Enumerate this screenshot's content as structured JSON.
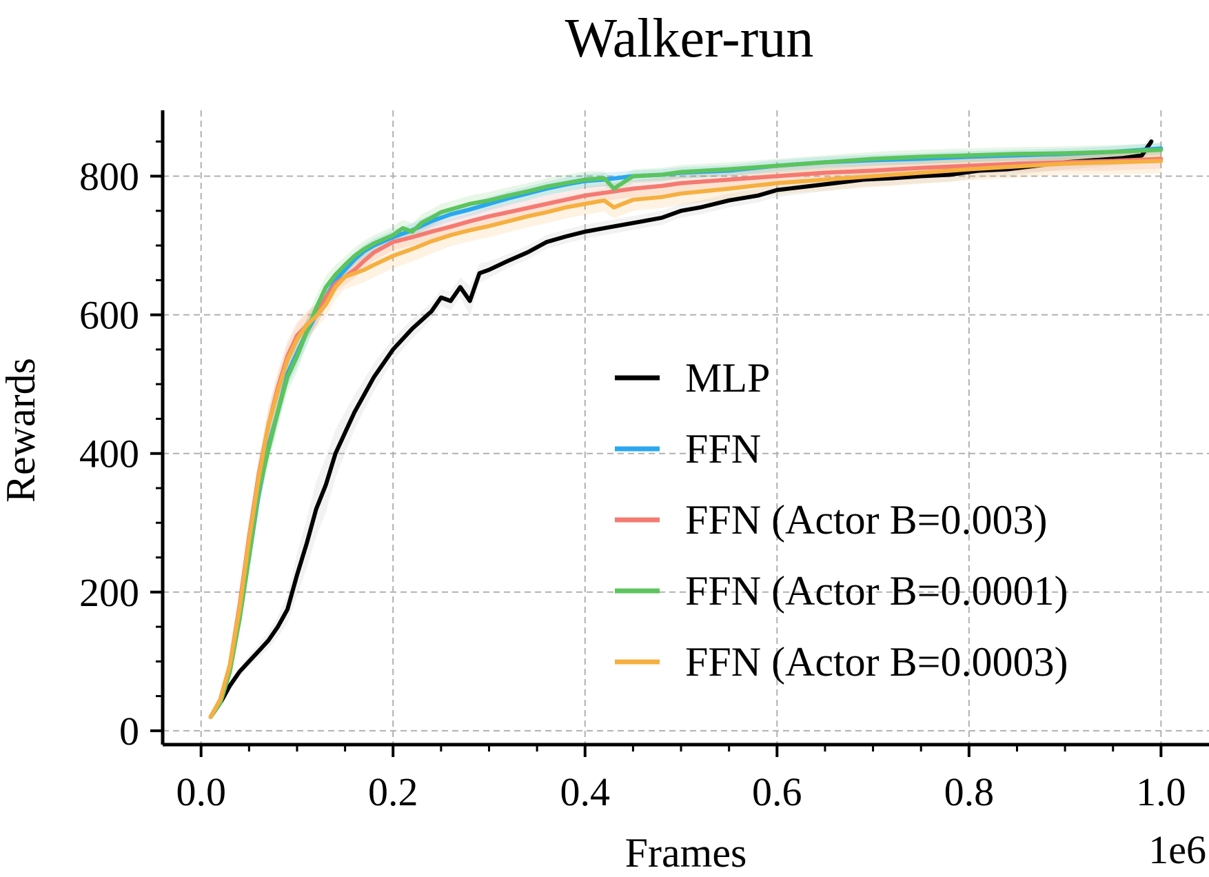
{
  "chart_data": {
    "type": "line",
    "title": "Walker-run",
    "xlabel": "Frames",
    "ylabel": "Rewards",
    "x_scale_label": "1e6",
    "xlim": [
      -0.04,
      1.05
    ],
    "ylim": [
      -20,
      895
    ],
    "xticks": [
      0.0,
      0.2,
      0.4,
      0.6,
      0.8,
      1.0
    ],
    "xtick_labels": [
      "0.0",
      "0.2",
      "0.4",
      "0.6",
      "0.8",
      "1.0"
    ],
    "yticks": [
      0,
      200,
      400,
      600,
      800
    ],
    "ytick_labels": [
      "0",
      "200",
      "400",
      "600",
      "800"
    ],
    "grid": true,
    "legend_position": "center-right",
    "series": [
      {
        "name": "MLP",
        "color": "#000000",
        "band_color": "#aaaaaa",
        "x": [
          0.01,
          0.02,
          0.03,
          0.04,
          0.05,
          0.06,
          0.07,
          0.08,
          0.09,
          0.1,
          0.11,
          0.12,
          0.13,
          0.14,
          0.15,
          0.16,
          0.17,
          0.18,
          0.19,
          0.2,
          0.22,
          0.24,
          0.25,
          0.26,
          0.27,
          0.28,
          0.29,
          0.3,
          0.32,
          0.34,
          0.36,
          0.38,
          0.4,
          0.42,
          0.44,
          0.46,
          0.48,
          0.5,
          0.52,
          0.55,
          0.58,
          0.6,
          0.63,
          0.66,
          0.69,
          0.72,
          0.75,
          0.78,
          0.81,
          0.84,
          0.87,
          0.9,
          0.93,
          0.96,
          0.98,
          0.99
        ],
        "y": [
          20,
          40,
          65,
          85,
          100,
          115,
          130,
          150,
          175,
          225,
          270,
          320,
          355,
          400,
          430,
          460,
          485,
          510,
          530,
          550,
          580,
          605,
          625,
          620,
          640,
          620,
          660,
          665,
          678,
          690,
          705,
          713,
          720,
          725,
          730,
          735,
          740,
          750,
          755,
          765,
          772,
          780,
          785,
          790,
          795,
          797,
          800,
          802,
          808,
          810,
          815,
          820,
          823,
          826,
          830,
          850
        ],
        "band": [
          3,
          5,
          6,
          7,
          8,
          10,
          12,
          15,
          20,
          30,
          35,
          40,
          40,
          35,
          30,
          25,
          22,
          20,
          18,
          16,
          14,
          12,
          12,
          14,
          14,
          22,
          14,
          12,
          10,
          10,
          10,
          10,
          10,
          10,
          10,
          10,
          10,
          10,
          10,
          10,
          10,
          10,
          10,
          10,
          10,
          10,
          10,
          10,
          10,
          10,
          10,
          10,
          10,
          10,
          10,
          10
        ]
      },
      {
        "name": "FFN",
        "color": "#2aa7f0",
        "band_color": "#2aa7f0",
        "x": [
          0.01,
          0.02,
          0.03,
          0.04,
          0.05,
          0.06,
          0.07,
          0.08,
          0.09,
          0.1,
          0.11,
          0.12,
          0.13,
          0.14,
          0.15,
          0.16,
          0.17,
          0.18,
          0.2,
          0.22,
          0.24,
          0.26,
          0.28,
          0.3,
          0.32,
          0.34,
          0.36,
          0.38,
          0.4,
          0.42,
          0.45,
          0.48,
          0.5,
          0.55,
          0.6,
          0.65,
          0.7,
          0.75,
          0.8,
          0.85,
          0.9,
          0.95,
          1.0
        ],
        "y": [
          20,
          45,
          90,
          160,
          250,
          340,
          410,
          460,
          515,
          545,
          575,
          600,
          625,
          650,
          665,
          680,
          692,
          700,
          712,
          722,
          735,
          745,
          752,
          760,
          768,
          775,
          782,
          788,
          793,
          795,
          800,
          802,
          805,
          808,
          815,
          820,
          823,
          825,
          828,
          830,
          832,
          835,
          840
        ],
        "band": [
          4,
          6,
          8,
          12,
          15,
          18,
          18,
          18,
          18,
          20,
          18,
          16,
          14,
          12,
          12,
          10,
          10,
          10,
          10,
          10,
          10,
          10,
          10,
          10,
          10,
          10,
          10,
          10,
          10,
          10,
          8,
          8,
          8,
          8,
          8,
          8,
          8,
          8,
          8,
          8,
          8,
          8,
          8
        ]
      },
      {
        "name": "FFN (Actor B=0.003)",
        "color": "#f47a72",
        "band_color": "#f47a72",
        "x": [
          0.01,
          0.02,
          0.03,
          0.04,
          0.05,
          0.06,
          0.07,
          0.08,
          0.09,
          0.1,
          0.11,
          0.12,
          0.13,
          0.14,
          0.15,
          0.16,
          0.17,
          0.18,
          0.2,
          0.22,
          0.24,
          0.26,
          0.28,
          0.3,
          0.32,
          0.34,
          0.36,
          0.38,
          0.4,
          0.42,
          0.45,
          0.48,
          0.5,
          0.55,
          0.6,
          0.65,
          0.7,
          0.75,
          0.8,
          0.85,
          0.9,
          0.95,
          1.0
        ],
        "y": [
          20,
          45,
          95,
          180,
          280,
          370,
          440,
          495,
          540,
          570,
          585,
          600,
          625,
          645,
          655,
          665,
          678,
          690,
          705,
          712,
          720,
          727,
          735,
          742,
          748,
          754,
          760,
          766,
          772,
          776,
          782,
          786,
          790,
          795,
          800,
          805,
          808,
          812,
          815,
          818,
          820,
          822,
          825
        ],
        "band": [
          4,
          6,
          10,
          14,
          18,
          22,
          24,
          24,
          22,
          20,
          18,
          16,
          14,
          12,
          12,
          12,
          12,
          12,
          12,
          12,
          12,
          12,
          12,
          12,
          12,
          12,
          12,
          12,
          12,
          12,
          12,
          12,
          12,
          12,
          12,
          12,
          12,
          12,
          12,
          12,
          12,
          14,
          14
        ]
      },
      {
        "name": "FFN (Actor B=0.0001)",
        "color": "#5cc45e",
        "band_color": "#5cc45e",
        "x": [
          0.01,
          0.02,
          0.03,
          0.04,
          0.05,
          0.06,
          0.07,
          0.08,
          0.09,
          0.1,
          0.11,
          0.12,
          0.13,
          0.14,
          0.15,
          0.16,
          0.17,
          0.18,
          0.2,
          0.21,
          0.22,
          0.23,
          0.24,
          0.25,
          0.26,
          0.28,
          0.3,
          0.32,
          0.34,
          0.36,
          0.38,
          0.4,
          0.42,
          0.43,
          0.45,
          0.48,
          0.5,
          0.55,
          0.6,
          0.65,
          0.7,
          0.75,
          0.8,
          0.85,
          0.9,
          0.95,
          1.0
        ],
        "y": [
          20,
          40,
          85,
          160,
          250,
          345,
          405,
          460,
          510,
          540,
          575,
          610,
          640,
          658,
          672,
          685,
          695,
          703,
          715,
          725,
          720,
          733,
          740,
          748,
          752,
          760,
          765,
          772,
          778,
          785,
          790,
          795,
          797,
          782,
          800,
          802,
          806,
          810,
          815,
          820,
          825,
          828,
          830,
          832,
          833,
          835,
          838
        ],
        "band": [
          4,
          6,
          10,
          14,
          18,
          20,
          22,
          22,
          22,
          22,
          20,
          18,
          16,
          14,
          12,
          12,
          12,
          12,
          12,
          12,
          12,
          12,
          12,
          12,
          12,
          12,
          12,
          12,
          12,
          12,
          12,
          12,
          10,
          10,
          10,
          10,
          10,
          10,
          10,
          10,
          10,
          10,
          10,
          10,
          10,
          10,
          10
        ]
      },
      {
        "name": "FFN (Actor B=0.0003)",
        "color": "#f5b041",
        "band_color": "#f5b041",
        "x": [
          0.01,
          0.02,
          0.03,
          0.04,
          0.05,
          0.06,
          0.07,
          0.08,
          0.09,
          0.1,
          0.11,
          0.12,
          0.13,
          0.14,
          0.15,
          0.16,
          0.17,
          0.18,
          0.2,
          0.22,
          0.24,
          0.26,
          0.28,
          0.3,
          0.32,
          0.34,
          0.36,
          0.38,
          0.4,
          0.42,
          0.43,
          0.45,
          0.48,
          0.5,
          0.55,
          0.6,
          0.65,
          0.7,
          0.75,
          0.8,
          0.85,
          0.9,
          0.95,
          1.0
        ],
        "y": [
          20,
          45,
          95,
          175,
          275,
          365,
          440,
          490,
          535,
          565,
          585,
          598,
          615,
          640,
          655,
          660,
          665,
          672,
          685,
          695,
          706,
          715,
          722,
          728,
          735,
          742,
          748,
          755,
          760,
          765,
          755,
          766,
          770,
          775,
          782,
          790,
          795,
          800,
          805,
          810,
          814,
          818,
          820,
          822
        ],
        "band": [
          4,
          6,
          10,
          14,
          18,
          22,
          24,
          24,
          22,
          20,
          20,
          18,
          18,
          18,
          18,
          18,
          18,
          18,
          18,
          18,
          18,
          16,
          16,
          16,
          16,
          16,
          16,
          16,
          16,
          16,
          16,
          16,
          16,
          16,
          16,
          16,
          16,
          16,
          16,
          16,
          16,
          16,
          18,
          18
        ]
      }
    ]
  }
}
